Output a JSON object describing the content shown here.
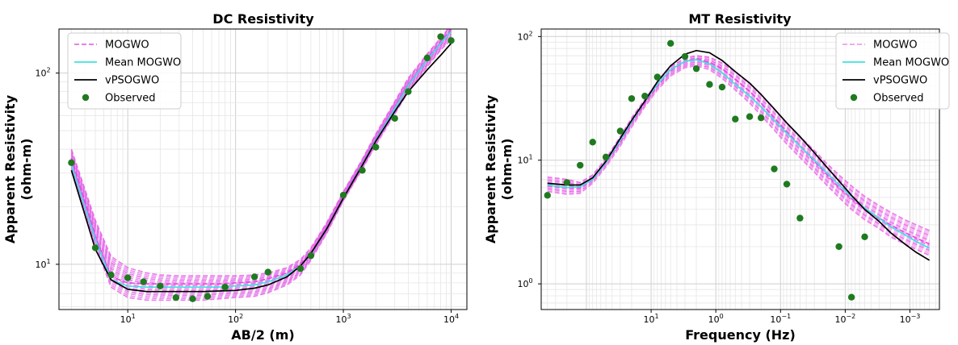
{
  "chart_data": [
    {
      "type": "line",
      "title": "DC Resistivity",
      "xlabel": "AB/2 (m)",
      "ylabel_line1": "Apparent Resistivity",
      "ylabel_line2": "(ohm-m)",
      "xscale": "log",
      "yscale": "log",
      "xlim": [
        2.3,
        14000
      ],
      "ylim": [
        5.8,
        170
      ],
      "xticks": [
        {
          "v": 10,
          "base": "10",
          "exp": "1"
        },
        {
          "v": 100,
          "base": "10",
          "exp": "2"
        },
        {
          "v": 1000,
          "base": "10",
          "exp": "3"
        },
        {
          "v": 10000,
          "base": "10",
          "exp": "4"
        }
      ],
      "yticks": [
        {
          "v": 10,
          "base": "10",
          "exp": "1"
        },
        {
          "v": 100,
          "base": "10",
          "exp": "2"
        }
      ],
      "grid": true,
      "legend_position": "top-left",
      "legend": [
        "MOGWO",
        "Mean MOGWO",
        "vPSOGWO",
        "Observed"
      ],
      "x": [
        3,
        5,
        7,
        10,
        15,
        20,
        30,
        40,
        50,
        70,
        100,
        150,
        200,
        300,
        400,
        500,
        700,
        1000,
        1500,
        2000,
        3000,
        4000,
        6000,
        8000,
        10000
      ],
      "series": [
        {
          "name": "MOGWO",
          "style": "dashed",
          "color": "#e070e8",
          "values": [
            36,
            14,
            8.6,
            8.0,
            7.9,
            7.9,
            7.9,
            7.9,
            7.9,
            7.9,
            8.0,
            8.1,
            8.4,
            9.0,
            10.0,
            11.5,
            15.5,
            22.5,
            33.5,
            45,
            66,
            87,
            118,
            145,
            168
          ],
          "spread_low": [
            31,
            12.5,
            7.6,
            6.7,
            6.5,
            6.5,
            6.5,
            6.5,
            6.5,
            6.6,
            6.7,
            6.8,
            7.1,
            7.8,
            8.8,
            10.5,
            14.5,
            21.5,
            31.5,
            42,
            61,
            80,
            108,
            132,
            150
          ],
          "spread_high": [
            40,
            17,
            11,
            9.6,
            9.0,
            8.8,
            8.7,
            8.7,
            8.7,
            8.7,
            8.7,
            8.8,
            9.0,
            9.6,
            10.6,
            12.2,
            16.5,
            24,
            35.5,
            48,
            71,
            94,
            126,
            153,
            178
          ]
        },
        {
          "name": "Mean MOGWO",
          "style": "solid",
          "color": "#40e0e0",
          "values": [
            33,
            13.5,
            8.3,
            7.7,
            7.6,
            7.6,
            7.6,
            7.6,
            7.6,
            7.6,
            7.7,
            7.8,
            8.1,
            8.8,
            9.8,
            11.3,
            15.3,
            22.3,
            33.2,
            44.5,
            65,
            86,
            117,
            143,
            165
          ]
        },
        {
          "name": "vPSOGWO",
          "style": "solid",
          "color": "#000000",
          "values": [
            31,
            12,
            8.3,
            7.4,
            7.2,
            7.2,
            7.2,
            7.2,
            7.2,
            7.25,
            7.3,
            7.5,
            7.8,
            8.6,
            9.8,
            11.4,
            15.3,
            22.2,
            33,
            44,
            63,
            80,
            104,
            124,
            143
          ]
        },
        {
          "name": "Observed",
          "style": "markers",
          "color": "#1f7a1f",
          "points": [
            [
              3,
              34
            ],
            [
              5,
              12.2
            ],
            [
              7,
              8.8
            ],
            [
              10,
              8.5
            ],
            [
              14,
              8.1
            ],
            [
              20,
              7.7
            ],
            [
              28,
              6.7
            ],
            [
              40,
              6.6
            ],
            [
              55,
              6.8
            ],
            [
              80,
              7.6
            ],
            [
              150,
              8.6
            ],
            [
              200,
              9.1
            ],
            [
              400,
              9.5
            ],
            [
              500,
              11.1
            ],
            [
              1000,
              23
            ],
            [
              1500,
              31
            ],
            [
              2000,
              41
            ],
            [
              3000,
              58
            ],
            [
              4000,
              80
            ],
            [
              6000,
              120
            ],
            [
              8000,
              155
            ],
            [
              10000,
              148
            ]
          ]
        }
      ]
    },
    {
      "type": "line",
      "title": "MT Resistivity",
      "xlabel": "Frequency (Hz)",
      "ylabel_line1": "Apparent Resistivity",
      "ylabel_line2": "(ohm-m)",
      "xscale": "log-reversed",
      "yscale": "log",
      "xlim": [
        500,
        0.00035
      ],
      "ylim": [
        0.62,
        115
      ],
      "xticks": [
        {
          "v": 10,
          "base": "10",
          "exp": "1"
        },
        {
          "v": 1,
          "base": "10",
          "exp": "0"
        },
        {
          "v": 0.1,
          "base": "10",
          "exp": "−1"
        },
        {
          "v": 0.01,
          "base": "10",
          "exp": "−2"
        },
        {
          "v": 0.001,
          "base": "10",
          "exp": "−3"
        }
      ],
      "yticks": [
        {
          "v": 1,
          "base": "10",
          "exp": "0"
        },
        {
          "v": 10,
          "base": "10",
          "exp": "1"
        },
        {
          "v": 100,
          "base": "10",
          "exp": "2"
        }
      ],
      "grid": true,
      "legend_position": "top-right",
      "legend": [
        "MOGWO",
        "Mean MOGWO",
        "vPSOGWO",
        "Observed"
      ],
      "x": [
        400,
        200,
        125,
        80,
        50,
        30,
        20,
        12.5,
        8,
        5,
        3,
        2,
        1.25,
        0.8,
        0.5,
        0.3,
        0.2,
        0.125,
        0.08,
        0.05,
        0.03,
        0.02,
        0.0125,
        0.008,
        0.005,
        0.003,
        0.002,
        0.0012,
        0.0008,
        0.0005
      ],
      "series": [
        {
          "name": "MOGWO",
          "style": "dashed",
          "color": "#ee9cee",
          "values": [
            6.2,
            6.0,
            6.0,
            7.0,
            9.5,
            14,
            20,
            29,
            40,
            53,
            63,
            66,
            62,
            55,
            45,
            36,
            29,
            22,
            17,
            13,
            9.8,
            7.8,
            6.0,
            4.9,
            4.0,
            3.4,
            3.0,
            2.6,
            2.35,
            2.1
          ],
          "spread_low": [
            5.6,
            5.3,
            5.4,
            6.5,
            8.8,
            13,
            18.5,
            27,
            37,
            48,
            56,
            58,
            54,
            46,
            37,
            29,
            23,
            17.5,
            13.5,
            10.5,
            8.0,
            6.4,
            5.0,
            4.0,
            3.3,
            2.8,
            2.4,
            2.1,
            1.9,
            1.7
          ],
          "spread_high": [
            7.3,
            7.0,
            6.6,
            7.6,
            10.3,
            15.5,
            22,
            31,
            43,
            57,
            67,
            70,
            68,
            61,
            52,
            42,
            34,
            26,
            20,
            15.5,
            12,
            9.6,
            7.6,
            6.2,
            5.1,
            4.3,
            3.8,
            3.3,
            3.0,
            2.7
          ]
        },
        {
          "name": "Mean MOGWO",
          "style": "solid",
          "color": "#40e0e0",
          "values": [
            6.3,
            6.0,
            6.1,
            7.0,
            9.6,
            14.5,
            20.5,
            30,
            41,
            54,
            63,
            65,
            60,
            51,
            41,
            33,
            27,
            21,
            16.5,
            13,
            10,
            8.1,
            6.3,
            5.1,
            4.1,
            3.4,
            2.9,
            2.5,
            2.2,
            1.95
          ]
        },
        {
          "name": "vPSOGWO",
          "style": "solid",
          "color": "#000000",
          "values": [
            6.5,
            6.3,
            6.3,
            7.2,
            9.8,
            15,
            21,
            30,
            43,
            58,
            72,
            77,
            74,
            64,
            52,
            42,
            34,
            26,
            20,
            15.5,
            11.5,
            9.0,
            6.8,
            5.2,
            4.0,
            3.2,
            2.6,
            2.1,
            1.8,
            1.55
          ]
        },
        {
          "name": "Observed",
          "style": "markers",
          "color": "#1f7a1f",
          "points": [
            [
              400,
              5.2
            ],
            [
              200,
              6.6
            ],
            [
              125,
              9.1
            ],
            [
              80,
              14
            ],
            [
              50,
              10.6
            ],
            [
              30,
              17.2
            ],
            [
              20,
              31.5
            ],
            [
              12.5,
              33
            ],
            [
              8,
              47
            ],
            [
              5,
              88
            ],
            [
              3,
              69
            ],
            [
              2,
              55
            ],
            [
              1.25,
              41
            ],
            [
              0.8,
              39
            ],
            [
              0.5,
              21.5
            ],
            [
              0.3,
              22.5
            ],
            [
              0.2,
              22
            ],
            [
              0.125,
              8.5
            ],
            [
              0.08,
              6.4
            ],
            [
              0.05,
              3.4
            ],
            [
              0.0125,
              2.0
            ],
            [
              0.008,
              0.78
            ],
            [
              0.005,
              2.4
            ]
          ]
        }
      ]
    }
  ]
}
